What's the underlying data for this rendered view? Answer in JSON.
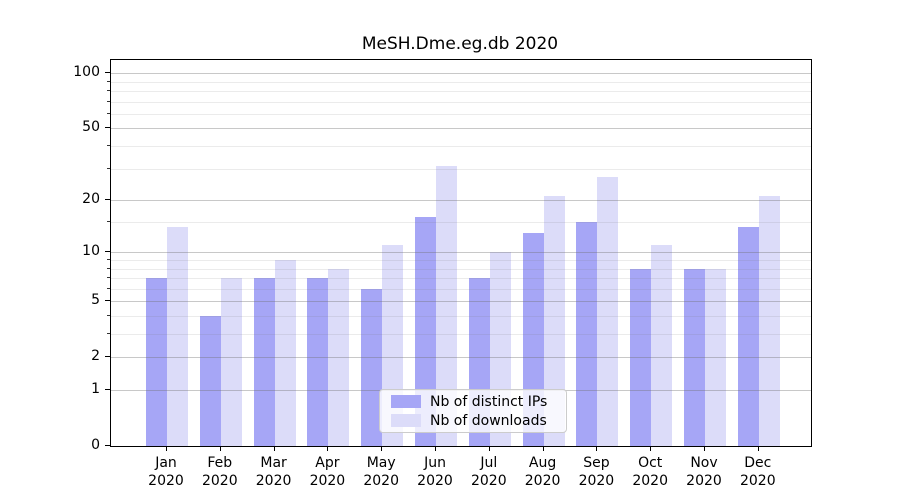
{
  "title": "MeSH.Dme.eg.db 2020",
  "legend": {
    "items": [
      {
        "label": "Nb of distinct IPs",
        "color": "#a6a6f6"
      },
      {
        "label": "Nb of downloads",
        "color": "#dcdcf9"
      }
    ],
    "position": "lower center"
  },
  "chart_data": {
    "type": "bar",
    "title": "MeSH.Dme.eg.db 2020",
    "categories": [
      "Jan 2020",
      "Feb 2020",
      "Mar 2020",
      "Apr 2020",
      "May 2020",
      "Jun 2020",
      "Jul 2020",
      "Aug 2020",
      "Sep 2020",
      "Oct 2020",
      "Nov 2020",
      "Dec 2020"
    ],
    "series": [
      {
        "name": "Nb of distinct IPs",
        "color": "#a6a6f6",
        "values": [
          7,
          4,
          7,
          7,
          6,
          16,
          7,
          13,
          15,
          8,
          8,
          14
        ]
      },
      {
        "name": "Nb of downloads",
        "color": "#dcdcf9",
        "values": [
          14,
          7,
          9,
          8,
          11,
          31,
          10,
          21,
          27,
          11,
          8,
          21
        ]
      }
    ],
    "xlabel": "",
    "ylabel": "",
    "yscale": "log1p",
    "ylim": [
      0,
      118
    ],
    "yticks": [
      0,
      1,
      2,
      5,
      10,
      20,
      50,
      100
    ],
    "yticks_minor": [
      3,
      4,
      6,
      7,
      8,
      9,
      15,
      30,
      40,
      60,
      70,
      80,
      90
    ],
    "grid": true,
    "legend_position": "lower center",
    "colors": {
      "background": "#ffffff",
      "spine": "#000000",
      "text": "#000000",
      "grid_major": "#cfcfcf",
      "grid_minor": "#e9e9e9"
    }
  }
}
